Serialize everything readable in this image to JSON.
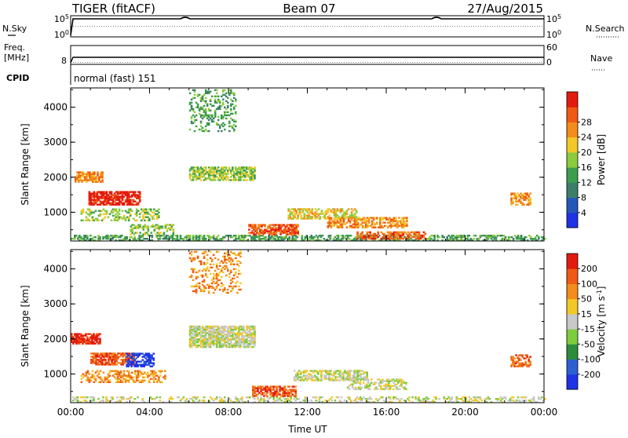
{
  "header": {
    "radar": "TIGER (fitACF)",
    "beam": "Beam 07",
    "date": "27/Aug/2015"
  },
  "panels": {
    "nsky": {
      "label": "N.Sky",
      "top_tick": "10^5",
      "bottom_tick": "10^0"
    },
    "nsearch": {
      "label": "N.Search",
      "top_tick": "10^5",
      "bottom_tick": "10^0"
    },
    "freq": {
      "label_line1": "Freq.",
      "label_line2": "[MHz]",
      "tick": "8"
    },
    "nave": {
      "label": "Nave",
      "top_tick": "60",
      "bottom_tick": "0"
    },
    "cpid": {
      "label": "CPID",
      "value": "normal (fast) 151"
    }
  },
  "chart_data": [
    {
      "type": "heatmap",
      "title": "",
      "xlabel": "Time UT",
      "ylabel": "Slant Range [km]",
      "x_ticks": [
        "00:00",
        "04:00",
        "08:00",
        "12:00",
        "16:00",
        "20:00",
        "00:00"
      ],
      "y_ticks": [
        "1000",
        "2000",
        "3000",
        "4000"
      ],
      "ylim": [
        180,
        4550
      ],
      "xlim_hours": [
        0,
        24
      ],
      "colorbar": {
        "label": "Power [dB]",
        "ticks": [
          "4",
          "8",
          "12",
          "16",
          "20",
          "24",
          "28"
        ],
        "colors": [
          "#1f32e6",
          "#2458b8",
          "#3d7e6a",
          "#3c9e4e",
          "#8ccb3e",
          "#f2c827",
          "#f28c1c",
          "#f05a14",
          "#e31a10"
        ]
      },
      "regions": [
        {
          "t0": 0.0,
          "t1": 24.0,
          "r0": 180,
          "r1": 360,
          "level": 3,
          "density": 0.55
        },
        {
          "t0": 0.2,
          "t1": 1.6,
          "r0": 1850,
          "r1": 2150,
          "level": 6,
          "density": 0.7
        },
        {
          "t0": 0.9,
          "t1": 3.5,
          "r0": 1200,
          "r1": 1600,
          "level": 8,
          "density": 0.8
        },
        {
          "t0": 0.5,
          "t1": 4.5,
          "r0": 750,
          "r1": 1100,
          "level": 4,
          "density": 0.4
        },
        {
          "t0": 3.0,
          "t1": 5.2,
          "r0": 350,
          "r1": 650,
          "level": 4,
          "density": 0.45
        },
        {
          "t0": 6.0,
          "t1": 8.4,
          "r0": 3300,
          "r1": 4500,
          "level": 3,
          "density": 0.25
        },
        {
          "t0": 6.0,
          "t1": 9.3,
          "r0": 1900,
          "r1": 2300,
          "level": 4,
          "density": 0.7
        },
        {
          "t0": 9.0,
          "t1": 11.5,
          "r0": 350,
          "r1": 650,
          "level": 7,
          "density": 0.7
        },
        {
          "t0": 11.0,
          "t1": 14.5,
          "r0": 800,
          "r1": 1100,
          "level": 5,
          "density": 0.6
        },
        {
          "t0": 13.0,
          "t1": 17.0,
          "r0": 550,
          "r1": 850,
          "level": 6,
          "density": 0.6
        },
        {
          "t0": 14.5,
          "t1": 18.0,
          "r0": 230,
          "r1": 420,
          "level": 7,
          "density": 0.6
        },
        {
          "t0": 22.3,
          "t1": 23.3,
          "r0": 1200,
          "r1": 1550,
          "level": 6,
          "density": 0.6
        }
      ]
    },
    {
      "type": "heatmap",
      "title": "",
      "xlabel": "Time UT",
      "ylabel": "Slant Range [km]",
      "x_ticks": [
        "00:00",
        "04:00",
        "08:00",
        "12:00",
        "16:00",
        "20:00",
        "00:00"
      ],
      "y_ticks": [
        "1000",
        "2000",
        "3000",
        "4000"
      ],
      "ylim": [
        180,
        4550
      ],
      "xlim_hours": [
        0,
        24
      ],
      "colorbar": {
        "label": "Velocity [m s^-1]",
        "ticks": [
          "200",
          "100",
          "50",
          "15",
          "-15",
          "-50",
          "-100",
          "-200"
        ],
        "colors": [
          "#1f32e6",
          "#2c5fd0",
          "#2d8c3c",
          "#7dcc3c",
          "#c8c8c8",
          "#f2c827",
          "#f28c1c",
          "#f05a14",
          "#e31a10"
        ]
      },
      "regions": [
        {
          "t0": 0.0,
          "t1": 24.0,
          "r0": 180,
          "r1": 320,
          "level": 4,
          "density": 0.35
        },
        {
          "t0": 0.0,
          "t1": 1.5,
          "r0": 1850,
          "r1": 2150,
          "level": 8,
          "density": 0.8
        },
        {
          "t0": 1.0,
          "t1": 3.2,
          "r0": 1250,
          "r1": 1600,
          "level": 7,
          "density": 0.75
        },
        {
          "t0": 2.8,
          "t1": 4.2,
          "r0": 1200,
          "r1": 1600,
          "level": 0,
          "density": 0.6
        },
        {
          "t0": 0.5,
          "t1": 4.8,
          "r0": 750,
          "r1": 1100,
          "level": 6,
          "density": 0.45
        },
        {
          "t0": 6.0,
          "t1": 8.6,
          "r0": 3300,
          "r1": 4500,
          "level": 6,
          "density": 0.25
        },
        {
          "t0": 6.0,
          "t1": 9.3,
          "r0": 1750,
          "r1": 2350,
          "level": 4,
          "density": 0.8
        },
        {
          "t0": 9.2,
          "t1": 11.4,
          "r0": 350,
          "r1": 650,
          "level": 7,
          "density": 0.7
        },
        {
          "t0": 11.3,
          "t1": 15.0,
          "r0": 800,
          "r1": 1100,
          "level": 4,
          "density": 0.6
        },
        {
          "t0": 14.0,
          "t1": 17.0,
          "r0": 550,
          "r1": 850,
          "level": 4,
          "density": 0.5
        },
        {
          "t0": 22.3,
          "t1": 23.3,
          "r0": 1200,
          "r1": 1550,
          "level": 7,
          "density": 0.6
        }
      ]
    }
  ]
}
